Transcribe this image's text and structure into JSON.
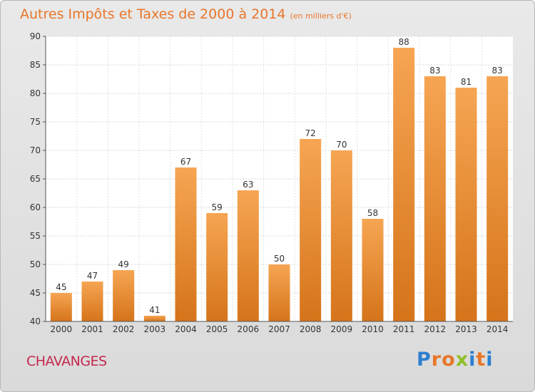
{
  "title": "Autres Impôts et Taxes de 2000 à 2014",
  "subtitle": "(en milliers d'€)",
  "town": "CHAVANGES",
  "logo": {
    "text": "Proxiti",
    "colors": [
      "#2c7fd0",
      "#e8762a",
      "#e8762a",
      "#8fbf28",
      "#2c7fd0",
      "#e8762a",
      "#2c7fd0"
    ]
  },
  "colors": {
    "bar_top": "#f6a553",
    "bar_bottom": "#d5741a",
    "title": "#e8762a",
    "town": "#c4284c"
  },
  "chart_data": {
    "type": "bar",
    "categories": [
      "2000",
      "2001",
      "2002",
      "2003",
      "2004",
      "2005",
      "2006",
      "2007",
      "2008",
      "2009",
      "2010",
      "2011",
      "2012",
      "2013",
      "2014"
    ],
    "values": [
      45,
      47,
      49,
      41,
      67,
      59,
      63,
      50,
      72,
      70,
      58,
      88,
      83,
      81,
      83
    ],
    "ylim": [
      40,
      90
    ],
    "yticks": [
      40,
      45,
      50,
      55,
      60,
      65,
      70,
      75,
      80,
      85,
      90
    ],
    "grid": true
  }
}
